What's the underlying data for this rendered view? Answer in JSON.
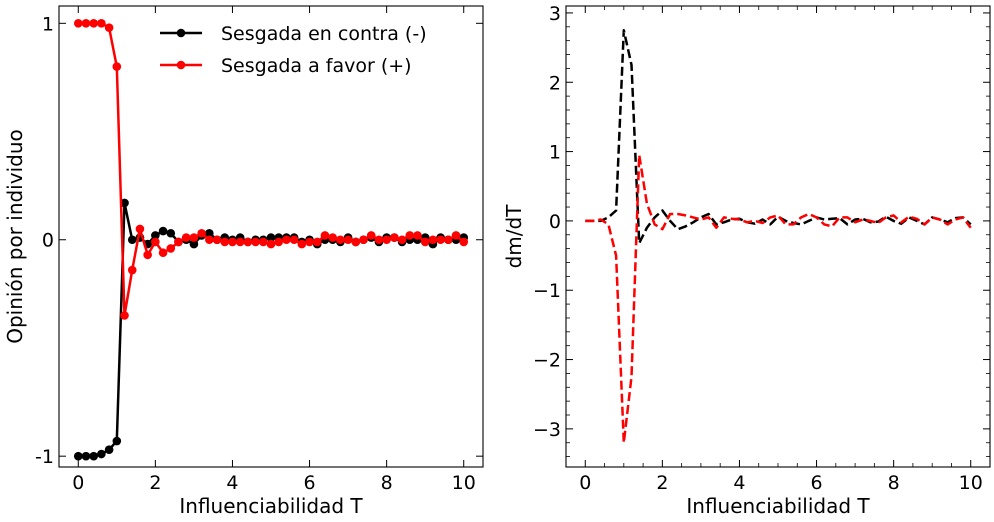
{
  "chart_data": [
    {
      "type": "line",
      "xlabel": "Influenciabilidad T",
      "ylabel": "Opinión por individuo",
      "xlim": [
        -0.5,
        10.5
      ],
      "ylim": [
        -1.05,
        1.08
      ],
      "xticks": [
        0,
        2,
        4,
        6,
        8,
        10
      ],
      "xtick_labels": [
        "0",
        "2",
        "4",
        "6",
        "8",
        "10"
      ],
      "yticks": [
        -1,
        0,
        1
      ],
      "ytick_labels": [
        "-1",
        "0",
        "1"
      ],
      "grid": false,
      "legend": "top-right",
      "marker": "circle",
      "x": [
        0.0,
        0.2,
        0.4,
        0.6,
        0.8,
        1.0,
        1.2,
        1.4,
        1.6,
        1.8,
        2.0,
        2.2,
        2.4,
        2.6,
        2.8,
        3.0,
        3.2,
        3.4,
        3.6,
        3.8,
        4.0,
        4.2,
        4.4,
        4.6,
        4.8,
        5.0,
        5.2,
        5.4,
        5.6,
        5.8,
        6.0,
        6.2,
        6.4,
        6.6,
        6.8,
        7.0,
        7.2,
        7.4,
        7.6,
        7.8,
        8.0,
        8.2,
        8.4,
        8.6,
        8.8,
        9.0,
        9.2,
        9.4,
        9.6,
        9.8,
        10.0
      ],
      "series": [
        {
          "name": "Sesgada en contra (-)",
          "color": "#000000",
          "values": [
            -1.0,
            -1.0,
            -1.0,
            -0.99,
            -0.97,
            -0.93,
            0.17,
            0.0,
            0.01,
            -0.02,
            0.02,
            0.04,
            0.03,
            -0.01,
            0.0,
            -0.02,
            0.02,
            0.03,
            0.0,
            0.01,
            0.0,
            0.01,
            -0.01,
            0.0,
            0.0,
            0.01,
            0.01,
            0.01,
            0.01,
            -0.01,
            0.0,
            -0.02,
            0.0,
            0.0,
            -0.01,
            0.01,
            -0.01,
            0.0,
            0.01,
            -0.01,
            0.01,
            0.01,
            -0.01,
            0.0,
            0.0,
            0.01,
            -0.02,
            0.01,
            0.0,
            0.0,
            0.01
          ]
        },
        {
          "name": "Sesgada a favor (+)",
          "color": "#ff0000",
          "values": [
            1.0,
            1.0,
            1.0,
            1.0,
            0.98,
            0.8,
            -0.35,
            -0.14,
            0.05,
            -0.07,
            -0.01,
            -0.06,
            -0.04,
            -0.01,
            0.01,
            0.01,
            0.03,
            0.0,
            0.0,
            -0.01,
            -0.01,
            -0.01,
            -0.01,
            -0.01,
            -0.01,
            -0.02,
            -0.01,
            0.0,
            0.0,
            -0.02,
            -0.01,
            -0.01,
            0.02,
            0.01,
            0.0,
            0.0,
            -0.01,
            0.0,
            0.02,
            0.0,
            0.0,
            0.01,
            0.0,
            0.02,
            0.02,
            -0.01,
            0.0,
            0.0,
            0.0,
            0.02,
            -0.01
          ]
        }
      ]
    },
    {
      "type": "line",
      "xlabel": "Influenciabilidad T",
      "ylabel": "dm/dT",
      "xlim": [
        -0.5,
        10.5
      ],
      "ylim": [
        -3.55,
        3.1
      ],
      "xticks": [
        0,
        2,
        4,
        6,
        8,
        10
      ],
      "xtick_labels": [
        "0",
        "2",
        "4",
        "6",
        "8",
        "10"
      ],
      "yticks": [
        -3,
        -2,
        -1,
        0,
        1,
        2,
        3
      ],
      "ytick_labels": [
        "−3",
        "−2",
        "−1",
        "0",
        "1",
        "2",
        "3"
      ],
      "grid": false,
      "linestyle": "dashed",
      "x": [
        0.0,
        0.2,
        0.4,
        0.6,
        0.8,
        1.0,
        1.2,
        1.4,
        1.6,
        1.8,
        2.0,
        2.2,
        2.4,
        2.6,
        2.8,
        3.0,
        3.2,
        3.4,
        3.6,
        3.8,
        4.0,
        4.2,
        4.4,
        4.6,
        4.8,
        5.0,
        5.2,
        5.4,
        5.6,
        5.8,
        6.0,
        6.2,
        6.4,
        6.6,
        6.8,
        7.0,
        7.2,
        7.4,
        7.6,
        7.8,
        8.0,
        8.2,
        8.4,
        8.6,
        8.8,
        9.0,
        9.2,
        9.4,
        9.6,
        9.8,
        10.0
      ],
      "series": [
        {
          "color": "#000000",
          "values": [
            0.0,
            0.0,
            0.0,
            0.05,
            0.15,
            2.75,
            2.25,
            -0.32,
            -0.1,
            0.05,
            0.15,
            0.0,
            -0.12,
            -0.08,
            -0.02,
            0.05,
            0.1,
            -0.05,
            -0.02,
            0.02,
            0.03,
            -0.02,
            -0.04,
            0.02,
            -0.05,
            0.06,
            0.0,
            -0.03,
            -0.05,
            0.0,
            0.05,
            0.02,
            0.03,
            0.04,
            -0.05,
            0.02,
            0.03,
            -0.02,
            -0.01,
            0.06,
            0.0,
            -0.04,
            0.05,
            0.0,
            -0.05,
            0.05,
            0.02,
            -0.02,
            0.04,
            0.05,
            -0.05
          ]
        },
        {
          "color": "#ff0000",
          "values": [
            0.0,
            0.0,
            0.02,
            -0.05,
            -0.5,
            -3.2,
            -2.25,
            0.95,
            0.25,
            -0.05,
            -0.12,
            0.1,
            0.1,
            0.08,
            0.05,
            0.02,
            0.05,
            -0.1,
            0.05,
            0.03,
            0.02,
            -0.02,
            0.0,
            -0.03,
            0.05,
            0.08,
            -0.05,
            -0.05,
            0.05,
            0.1,
            0.05,
            -0.05,
            -0.08,
            0.05,
            0.05,
            -0.02,
            0.02,
            0.0,
            -0.03,
            0.05,
            0.08,
            -0.02,
            0.06,
            0.03,
            -0.05,
            0.05,
            0.02,
            -0.05,
            0.02,
            0.05,
            -0.1
          ]
        }
      ]
    }
  ]
}
